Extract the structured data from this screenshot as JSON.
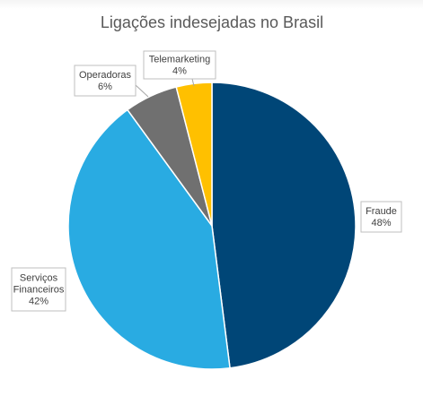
{
  "chart_data": {
    "type": "pie",
    "title": "Ligações indesejadas no Brasil",
    "slices": [
      {
        "label_lines": [
          "Fraude"
        ],
        "value": 48,
        "value_text": "48%",
        "color": "#004677"
      },
      {
        "label_lines": [
          "Serviços",
          "Financeiros"
        ],
        "value": 42,
        "value_text": "42%",
        "color": "#29abe2"
      },
      {
        "label_lines": [
          "Operadoras"
        ],
        "value": 6,
        "value_text": "6%",
        "color": "#707070"
      },
      {
        "label_lines": [
          "Telemarketing"
        ],
        "value": 4,
        "value_text": "4%",
        "color": "#ffc000"
      }
    ],
    "start_angle_deg": 0,
    "direction": "clockwise",
    "legend": "none",
    "data_labels": "callouts"
  }
}
